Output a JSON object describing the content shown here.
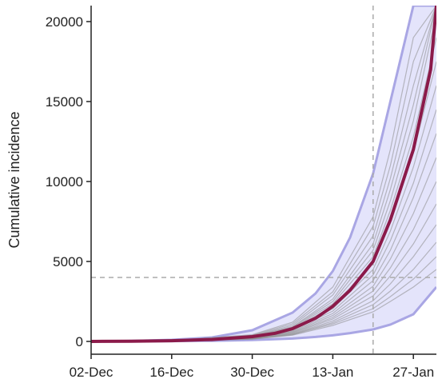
{
  "chart_data": {
    "type": "line",
    "title": "",
    "xlabel": "",
    "ylabel": "Cumulative incidence",
    "x_axis": {
      "scale": "date",
      "range": [
        "2019-12-02",
        "2020-01-31"
      ],
      "ticks": [
        "2019-12-02",
        "2019-12-16",
        "2019-12-30",
        "2020-01-13",
        "2020-01-27"
      ],
      "tick_labels": [
        "02-Dec",
        "16-Dec",
        "30-Dec",
        "13-Jan",
        "27-Jan"
      ]
    },
    "y_axis": {
      "range": [
        -800,
        21000
      ],
      "ticks": [
        0,
        5000,
        10000,
        15000,
        20000
      ],
      "tick_labels": [
        "0",
        "5000",
        "10000",
        "15000",
        "20000"
      ]
    },
    "grid": false,
    "legend": "none",
    "reference_lines": {
      "horizontal_y": 4000,
      "vertical_x": "2020-01-20"
    },
    "colors": {
      "band_fill": "#e4e4fb",
      "band_edge": "#a9a6e4",
      "simulation_lines": "#8a8a8a",
      "median_line": "#8b1a4a",
      "reference_lines": "#aaaaaa",
      "axis": "#222222"
    },
    "series": [
      {
        "role": "band",
        "x": [
          "2019-12-02",
          "2019-12-09",
          "2019-12-16",
          "2019-12-23",
          "2019-12-30",
          "2020-01-06",
          "2020-01-10",
          "2020-01-13",
          "2020-01-16",
          "2020-01-20",
          "2020-01-23",
          "2020-01-27",
          "2020-01-31"
        ],
        "lower": [
          0,
          8,
          18,
          40,
          85,
          180,
          280,
          380,
          520,
          750,
          1050,
          1700,
          3400
        ],
        "upper": [
          0,
          30,
          100,
          250,
          700,
          1800,
          3000,
          4400,
          6500,
          10500,
          15000,
          21000,
          21000
        ]
      },
      {
        "role": "median",
        "x": [
          "2019-12-02",
          "2019-12-09",
          "2019-12-16",
          "2019-12-23",
          "2019-12-30",
          "2020-01-03",
          "2020-01-06",
          "2020-01-10",
          "2020-01-13",
          "2020-01-16",
          "2020-01-20",
          "2020-01-23",
          "2020-01-27",
          "2020-01-30",
          "2020-01-31"
        ],
        "y": [
          0,
          15,
          45,
          120,
          300,
          510,
          800,
          1450,
          2200,
          3200,
          5000,
          7600,
          12000,
          17000,
          21000
        ]
      }
    ],
    "simulations": [
      {
        "x": [
          "2019-12-02",
          "2019-12-16",
          "2019-12-30",
          "2020-01-06",
          "2020-01-13",
          "2020-01-20",
          "2020-01-23",
          "2020-01-27",
          "2020-01-31"
        ],
        "y": [
          0,
          55,
          420,
          1200,
          3400,
          7800,
          12000,
          19000,
          21000
        ]
      },
      {
        "x": [
          "2019-12-02",
          "2019-12-16",
          "2019-12-30",
          "2020-01-06",
          "2020-01-13",
          "2020-01-20",
          "2020-01-23",
          "2020-01-27",
          "2020-01-31"
        ],
        "y": [
          0,
          50,
          380,
          1100,
          3100,
          7200,
          11000,
          17500,
          21000
        ]
      },
      {
        "x": [
          "2019-12-02",
          "2019-12-16",
          "2019-12-30",
          "2020-01-06",
          "2020-01-13",
          "2020-01-20",
          "2020-01-23",
          "2020-01-27",
          "2020-01-31"
        ],
        "y": [
          0,
          48,
          350,
          1000,
          2900,
          6600,
          10200,
          16000,
          21000
        ]
      },
      {
        "x": [
          "2019-12-02",
          "2019-12-16",
          "2019-12-30",
          "2020-01-06",
          "2020-01-13",
          "2020-01-20",
          "2020-01-23",
          "2020-01-27",
          "2020-01-31"
        ],
        "y": [
          0,
          45,
          330,
          920,
          2650,
          6100,
          9500,
          14800,
          21000
        ]
      },
      {
        "x": [
          "2019-12-02",
          "2019-12-16",
          "2019-12-30",
          "2020-01-06",
          "2020-01-13",
          "2020-01-20",
          "2020-01-23",
          "2020-01-27",
          "2020-01-31"
        ],
        "y": [
          0,
          44,
          310,
          880,
          2500,
          5700,
          8800,
          13800,
          20500
        ]
      },
      {
        "x": [
          "2019-12-02",
          "2019-12-16",
          "2019-12-30",
          "2020-01-06",
          "2020-01-13",
          "2020-01-20",
          "2020-01-23",
          "2020-01-27",
          "2020-01-31"
        ],
        "y": [
          0,
          42,
          290,
          830,
          2350,
          5300,
          8200,
          12800,
          19000
        ]
      },
      {
        "x": [
          "2019-12-02",
          "2019-12-16",
          "2019-12-30",
          "2020-01-06",
          "2020-01-13",
          "2020-01-20",
          "2020-01-23",
          "2020-01-27",
          "2020-01-31"
        ],
        "y": [
          0,
          40,
          280,
          780,
          2200,
          4900,
          7500,
          11800,
          17500
        ]
      },
      {
        "x": [
          "2019-12-02",
          "2019-12-16",
          "2019-12-30",
          "2020-01-06",
          "2020-01-13",
          "2020-01-20",
          "2020-01-23",
          "2020-01-27",
          "2020-01-31"
        ],
        "y": [
          0,
          38,
          260,
          730,
          2050,
          4500,
          6900,
          10900,
          16000
        ]
      },
      {
        "x": [
          "2019-12-02",
          "2019-12-16",
          "2019-12-30",
          "2020-01-06",
          "2020-01-13",
          "2020-01-20",
          "2020-01-23",
          "2020-01-27",
          "2020-01-31"
        ],
        "y": [
          0,
          36,
          250,
          690,
          1900,
          4150,
          6300,
          9900,
          14500
        ]
      },
      {
        "x": [
          "2019-12-02",
          "2019-12-16",
          "2019-12-30",
          "2020-01-06",
          "2020-01-13",
          "2020-01-20",
          "2020-01-23",
          "2020-01-27",
          "2020-01-31"
        ],
        "y": [
          0,
          34,
          235,
          640,
          1750,
          3800,
          5700,
          9000,
          13000
        ]
      },
      {
        "x": [
          "2019-12-02",
          "2019-12-16",
          "2019-12-30",
          "2020-01-06",
          "2020-01-13",
          "2020-01-20",
          "2020-01-23",
          "2020-01-27",
          "2020-01-31"
        ],
        "y": [
          0,
          32,
          220,
          600,
          1620,
          3450,
          5150,
          8000,
          11500
        ]
      },
      {
        "x": [
          "2019-12-02",
          "2019-12-16",
          "2019-12-30",
          "2020-01-06",
          "2020-01-13",
          "2020-01-20",
          "2020-01-23",
          "2020-01-27",
          "2020-01-31"
        ],
        "y": [
          0,
          30,
          205,
          560,
          1500,
          3150,
          4600,
          7000,
          10000
        ]
      },
      {
        "x": [
          "2019-12-02",
          "2019-12-16",
          "2019-12-30",
          "2020-01-06",
          "2020-01-13",
          "2020-01-20",
          "2020-01-23",
          "2020-01-27",
          "2020-01-31"
        ],
        "y": [
          0,
          28,
          195,
          520,
          1400,
          2850,
          4100,
          6100,
          8600
        ]
      },
      {
        "x": [
          "2019-12-02",
          "2019-12-16",
          "2019-12-30",
          "2020-01-06",
          "2020-01-13",
          "2020-01-20",
          "2020-01-23",
          "2020-01-27",
          "2020-01-31"
        ],
        "y": [
          0,
          26,
          180,
          480,
          1280,
          2550,
          3600,
          5300,
          7300
        ]
      },
      {
        "x": [
          "2019-12-02",
          "2019-12-16",
          "2019-12-30",
          "2020-01-06",
          "2020-01-13",
          "2020-01-20",
          "2020-01-23",
          "2020-01-27",
          "2020-01-31"
        ],
        "y": [
          0,
          24,
          165,
          450,
          1180,
          2300,
          3150,
          4500,
          6200
        ]
      },
      {
        "x": [
          "2019-12-02",
          "2019-12-16",
          "2019-12-30",
          "2020-01-06",
          "2020-01-13",
          "2020-01-20",
          "2020-01-23",
          "2020-01-27",
          "2020-01-31"
        ],
        "y": [
          0,
          22,
          150,
          420,
          1100,
          2050,
          2800,
          3900,
          5300
        ]
      },
      {
        "x": [
          "2019-12-02",
          "2019-12-16",
          "2019-12-30",
          "2020-01-06",
          "2020-01-13",
          "2020-01-20",
          "2020-01-23",
          "2020-01-27",
          "2020-01-31"
        ],
        "y": [
          0,
          20,
          140,
          390,
          1000,
          1850,
          2500,
          3400,
          4500
        ]
      }
    ]
  }
}
